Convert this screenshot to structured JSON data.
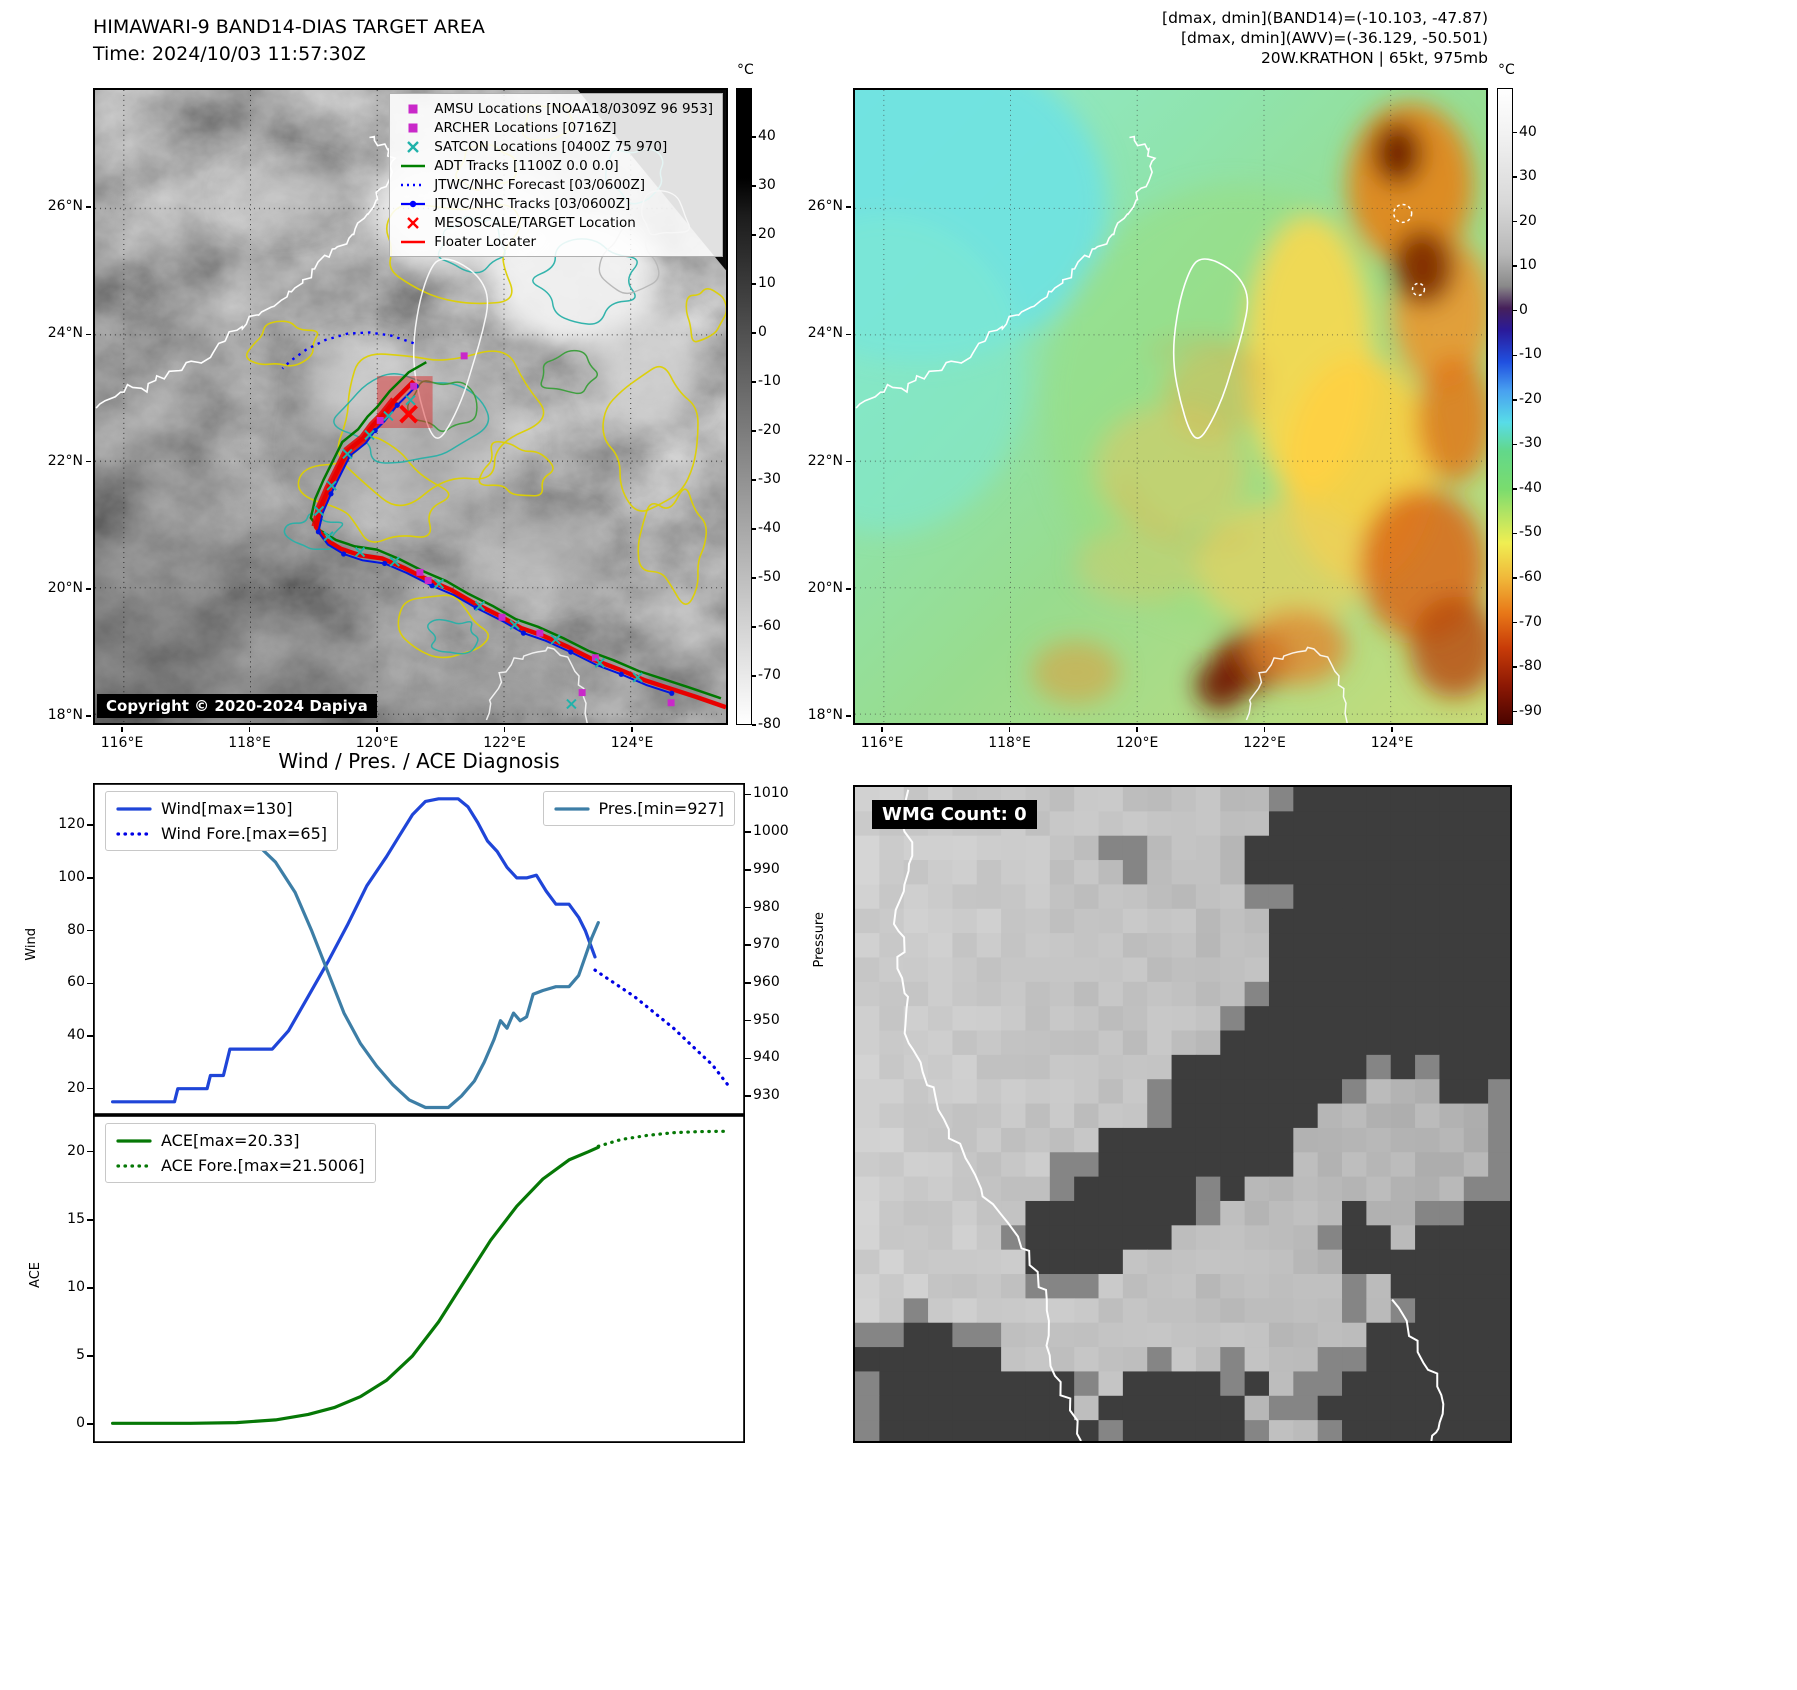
{
  "panel_band14": {
    "title": "HIMAWARI-9 BAND14-DIAS TARGET AREA",
    "subtitle": "Time: 2024/10/03 11:57:30Z",
    "copyright": "Copyright © 2020-2024 Dapiya",
    "colorbar_unit": "°C",
    "colorbar_ticks": [
      40,
      30,
      20,
      10,
      0,
      -10,
      -20,
      -30,
      -40,
      -50,
      -60,
      -70,
      -80
    ],
    "x_ticks": [
      "116°E",
      "118°E",
      "120°E",
      "122°E",
      "124°E"
    ],
    "y_ticks": [
      "18°N",
      "20°N",
      "22°N",
      "24°N",
      "26°N"
    ],
    "legend": [
      {
        "label": "AMSU Locations [NOAA18/0309Z 96 953]",
        "marker": "square",
        "color": "#c928c9"
      },
      {
        "label": "ARCHER Locations [0716Z]",
        "marker": "square",
        "color": "#c928c9"
      },
      {
        "label": "SATCON Locations [0400Z 75 970]",
        "marker": "x",
        "color": "#20b2aa"
      },
      {
        "label": "ADT Tracks [1100Z 0.0 0.0]",
        "marker": "line",
        "color": "#008000"
      },
      {
        "label": "JTWC/NHC Forecast [03/0600Z]",
        "marker": "dotted",
        "color": "#0000ff"
      },
      {
        "label": "JTWC/NHC Tracks [03/0600Z]",
        "marker": "line-dot",
        "color": "#0000ff"
      },
      {
        "label": "MESOSCALE/TARGET Location",
        "marker": "x",
        "color": "#ff0000"
      },
      {
        "label": "Floater Locater",
        "marker": "line",
        "color": "#ff0000"
      }
    ]
  },
  "panel_awv": {
    "header_lines": [
      "[dmax, dmin](BAND14)=(-10.103, -47.87)",
      "[dmax, dmin](AWV)=(-36.129, -50.501)",
      "20W.KRATHON | 65kt, 975mb"
    ],
    "colorbar_unit": "°C",
    "colorbar_ticks": [
      40,
      30,
      20,
      10,
      0,
      -10,
      -20,
      -30,
      -40,
      -50,
      -60,
      -70,
      -80,
      -90
    ],
    "x_ticks": [
      "116°E",
      "118°E",
      "120°E",
      "122°E",
      "124°E"
    ],
    "y_ticks": [
      "18°N",
      "20°N",
      "22°N",
      "24°N",
      "26°N"
    ]
  },
  "diagnosis_title": "Wind / Pres. / ACE Diagnosis",
  "panel_wmg": {
    "label": "WMG Count: 0"
  },
  "chart_data": [
    {
      "type": "line",
      "title": "Wind / Pres. / ACE Diagnosis",
      "xlabel": "",
      "ylabel_left": "Wind",
      "ylabel_right": "Pressure",
      "yticks_left": [
        20,
        40,
        60,
        80,
        100,
        120
      ],
      "yticks_right": [
        930,
        940,
        950,
        960,
        970,
        980,
        990,
        1000,
        1010
      ],
      "ylim_left": [
        10,
        136
      ],
      "ylim_right": [
        925,
        1013
      ],
      "xlim": [
        0,
        1
      ],
      "grid": false,
      "series": [
        {
          "name": "Wind[max=130]",
          "axis": "left",
          "style": "solid",
          "color": "#1f45d8",
          "width": 3.2,
          "points": [
            [
              0.03,
              15
            ],
            [
              0.125,
              15
            ],
            [
              0.13,
              20
            ],
            [
              0.175,
              20
            ],
            [
              0.18,
              25
            ],
            [
              0.2,
              25
            ],
            [
              0.21,
              35
            ],
            [
              0.275,
              35
            ],
            [
              0.3,
              42
            ],
            [
              0.33,
              55
            ],
            [
              0.36,
              68
            ],
            [
              0.39,
              82
            ],
            [
              0.42,
              97
            ],
            [
              0.45,
              108
            ],
            [
              0.47,
              116
            ],
            [
              0.49,
              124
            ],
            [
              0.51,
              129
            ],
            [
              0.53,
              130
            ],
            [
              0.56,
              130
            ],
            [
              0.575,
              127
            ],
            [
              0.59,
              121
            ],
            [
              0.605,
              114
            ],
            [
              0.62,
              110
            ],
            [
              0.635,
              104
            ],
            [
              0.65,
              100
            ],
            [
              0.665,
              100
            ],
            [
              0.68,
              101
            ],
            [
              0.695,
              95
            ],
            [
              0.71,
              90
            ],
            [
              0.73,
              90
            ],
            [
              0.745,
              85
            ],
            [
              0.755,
              80
            ],
            [
              0.77,
              70
            ]
          ]
        },
        {
          "name": "Wind Fore.[max=65]",
          "axis": "left",
          "style": "dotted",
          "color": "#0000e6",
          "width": 3.2,
          "points": [
            [
              0.77,
              65
            ],
            [
              0.8,
              60
            ],
            [
              0.83,
              55
            ],
            [
              0.86,
              49
            ],
            [
              0.89,
              43
            ],
            [
              0.92,
              36
            ],
            [
              0.95,
              29
            ],
            [
              0.975,
              21
            ]
          ]
        },
        {
          "name": "Pres.[min=927]",
          "axis": "right",
          "style": "solid",
          "color": "#3d7ea6",
          "width": 3.2,
          "points": [
            [
              0.03,
              1005
            ],
            [
              0.1,
              1005
            ],
            [
              0.15,
              1004
            ],
            [
              0.19,
              1002
            ],
            [
              0.22,
              1000
            ],
            [
              0.25,
              997
            ],
            [
              0.28,
              992
            ],
            [
              0.31,
              984
            ],
            [
              0.335,
              974
            ],
            [
              0.36,
              963
            ],
            [
              0.385,
              952
            ],
            [
              0.41,
              944
            ],
            [
              0.435,
              938
            ],
            [
              0.46,
              933
            ],
            [
              0.485,
              929
            ],
            [
              0.51,
              927
            ],
            [
              0.545,
              927
            ],
            [
              0.565,
              930
            ],
            [
              0.585,
              934
            ],
            [
              0.6,
              939
            ],
            [
              0.615,
              945
            ],
            [
              0.625,
              950
            ],
            [
              0.635,
              948
            ],
            [
              0.645,
              952
            ],
            [
              0.655,
              950
            ],
            [
              0.665,
              951
            ],
            [
              0.675,
              957
            ],
            [
              0.69,
              958
            ],
            [
              0.71,
              959
            ],
            [
              0.73,
              959
            ],
            [
              0.745,
              962
            ],
            [
              0.755,
              967
            ],
            [
              0.765,
              972
            ],
            [
              0.775,
              976
            ]
          ]
        }
      ]
    },
    {
      "type": "line",
      "title": "",
      "xlabel": "",
      "ylabel": "ACE",
      "yticks": [
        0,
        5,
        10,
        15,
        20
      ],
      "ylim": [
        -1.4,
        22.7
      ],
      "xlim": [
        0,
        1
      ],
      "grid": false,
      "series": [
        {
          "name": "ACE[max=20.33]",
          "style": "solid",
          "color": "#067806",
          "width": 3.2,
          "points": [
            [
              0.03,
              0.05
            ],
            [
              0.15,
              0.05
            ],
            [
              0.22,
              0.1
            ],
            [
              0.28,
              0.3
            ],
            [
              0.33,
              0.7
            ],
            [
              0.37,
              1.2
            ],
            [
              0.41,
              2
            ],
            [
              0.45,
              3.2
            ],
            [
              0.49,
              5
            ],
            [
              0.53,
              7.5
            ],
            [
              0.57,
              10.5
            ],
            [
              0.61,
              13.5
            ],
            [
              0.65,
              16
            ],
            [
              0.69,
              18
            ],
            [
              0.73,
              19.4
            ],
            [
              0.76,
              20
            ],
            [
              0.775,
              20.33
            ]
          ]
        },
        {
          "name": "ACE Fore.[max=21.5006]",
          "style": "dotted",
          "color": "#067806",
          "width": 3.2,
          "points": [
            [
              0.775,
              20.4
            ],
            [
              0.81,
              20.9
            ],
            [
              0.85,
              21.2
            ],
            [
              0.89,
              21.4
            ],
            [
              0.93,
              21.48
            ],
            [
              0.97,
              21.5
            ]
          ]
        }
      ]
    }
  ]
}
